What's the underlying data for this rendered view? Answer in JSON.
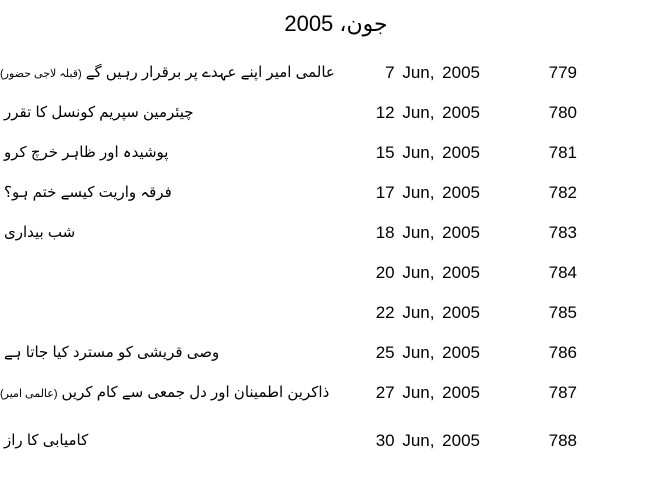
{
  "page": {
    "title": "جون، 2005"
  },
  "colors": {
    "background": "#ffffff",
    "text": "#000000"
  },
  "rows": [
    {
      "title": "عالمی امیر اپنے عہدے پر برقرار رہیں گے",
      "note": "(قبلہ لاجی حضور)",
      "date": "7 Jun, 2005",
      "number": "779"
    },
    {
      "title": "چیئرمین سپریم کونسل کا تقرر",
      "note": "",
      "date": "12 Jun, 2005",
      "number": "780"
    },
    {
      "title": "پوشیدہ اور ظاہر خرچ کرو",
      "note": "",
      "date": "15 Jun, 2005",
      "number": "781"
    },
    {
      "title": "فرقہ واریت کیسے ختم ہو؟",
      "note": "",
      "date": "17 Jun, 2005",
      "number": "782"
    },
    {
      "title": "شب بیداری",
      "note": "",
      "date": "18 Jun, 2005",
      "number": "783"
    },
    {
      "title": "",
      "note": "",
      "date": "20 Jun, 2005",
      "number": "784"
    },
    {
      "title": "",
      "note": "",
      "date": "22 Jun, 2005",
      "number": "785"
    },
    {
      "title": "وصی قریشی کو مسترد کیا جاتا ہے",
      "note": "",
      "date": "25 Jun, 2005",
      "number": "786"
    },
    {
      "title": "ذاکرین اطمینان اور دل جمعی سے کام کریں",
      "note": "(عالمی امیر)",
      "date": "27 Jun, 2005",
      "number": "787"
    },
    {
      "title": "کامیابی کا راز",
      "note": "",
      "date": "30 Jun, 2005",
      "number": "788"
    }
  ]
}
